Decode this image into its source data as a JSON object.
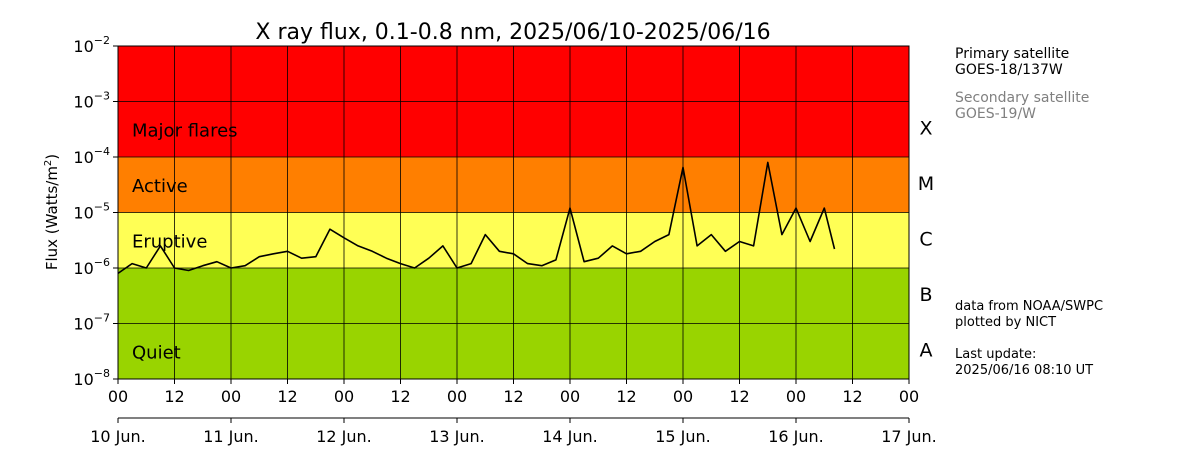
{
  "chart_data": {
    "type": "line",
    "title": "X ray flux, 0.1-0.8 nm, 2025/06/10-2025/06/16",
    "ylabel": "Flux (Watts/m²)",
    "xlabel": "",
    "y_scale": "log",
    "ylim": [
      "1e-8",
      "1e-2"
    ],
    "y_ticks": [
      {
        "value": "1e-2",
        "base": "10",
        "exp": "−2"
      },
      {
        "value": "1e-3",
        "base": "10",
        "exp": "−3"
      },
      {
        "value": "1e-4",
        "base": "10",
        "exp": "−4"
      },
      {
        "value": "1e-5",
        "base": "10",
        "exp": "−5"
      },
      {
        "value": "1e-6",
        "base": "10",
        "exp": "−6"
      },
      {
        "value": "1e-7",
        "base": "10",
        "exp": "−7"
      },
      {
        "value": "1e-8",
        "base": "10",
        "exp": "−8"
      }
    ],
    "xlim": [
      "2025-06-10T00:00",
      "2025-06-17T00:00"
    ],
    "hour_ticks": [
      "00",
      "12",
      "00",
      "12",
      "00",
      "12",
      "00",
      "12",
      "00",
      "12",
      "00",
      "12",
      "00",
      "12",
      "00"
    ],
    "day_labels": [
      "10 Jun.",
      "11 Jun.",
      "12 Jun.",
      "13 Jun.",
      "14 Jun.",
      "15 Jun.",
      "16 Jun.",
      "17 Jun."
    ],
    "grid": true,
    "bands": [
      {
        "label": "Major flares",
        "from": "1e-4",
        "to": "1e-2",
        "color": "#ff0000"
      },
      {
        "label": "Active",
        "from": "1e-5",
        "to": "1e-4",
        "color": "#ff7f00"
      },
      {
        "label": "Eruptive",
        "from": "1e-6",
        "to": "1e-5",
        "color": "#ffff55"
      },
      {
        "label": "Quiet",
        "from": "1e-8",
        "to": "1e-6",
        "color": "#99d400"
      }
    ],
    "classes": [
      {
        "label": "X",
        "at": "3e-4"
      },
      {
        "label": "M",
        "at": "3e-5"
      },
      {
        "label": "C",
        "at": "3e-6"
      },
      {
        "label": "B",
        "at": "3e-7"
      },
      {
        "label": "A",
        "at": "3e-8"
      }
    ],
    "series": [
      {
        "color": "#000000",
        "x": [
          "2025-06-10T00:00",
          "2025-06-10T03:00",
          "2025-06-10T06:00",
          "2025-06-10T09:00",
          "2025-06-10T12:00",
          "2025-06-10T15:00",
          "2025-06-10T18:00",
          "2025-06-10T21:00",
          "2025-06-11T00:00",
          "2025-06-11T03:00",
          "2025-06-11T06:00",
          "2025-06-11T09:00",
          "2025-06-11T12:00",
          "2025-06-11T15:00",
          "2025-06-11T18:00",
          "2025-06-11T21:00",
          "2025-06-12T00:00",
          "2025-06-12T03:00",
          "2025-06-12T06:00",
          "2025-06-12T09:00",
          "2025-06-12T12:00",
          "2025-06-12T15:00",
          "2025-06-12T18:00",
          "2025-06-12T21:00",
          "2025-06-13T00:00",
          "2025-06-13T03:00",
          "2025-06-13T06:00",
          "2025-06-13T09:00",
          "2025-06-13T12:00",
          "2025-06-13T15:00",
          "2025-06-13T18:00",
          "2025-06-13T21:00",
          "2025-06-14T00:00",
          "2025-06-14T03:00",
          "2025-06-14T06:00",
          "2025-06-14T09:00",
          "2025-06-14T12:00",
          "2025-06-14T15:00",
          "2025-06-14T18:00",
          "2025-06-14T21:00",
          "2025-06-15T00:00",
          "2025-06-15T03:00",
          "2025-06-15T06:00",
          "2025-06-15T09:00",
          "2025-06-15T12:00",
          "2025-06-15T15:00",
          "2025-06-15T18:00",
          "2025-06-15T21:00",
          "2025-06-16T00:00",
          "2025-06-16T03:00",
          "2025-06-16T06:00",
          "2025-06-16T08:10"
        ],
        "y": [
          8e-07,
          1.2e-06,
          1e-06,
          2.5e-06,
          1e-06,
          9e-07,
          1.1e-06,
          1.3e-06,
          1e-06,
          1.1e-06,
          1.6e-06,
          1.8e-06,
          2e-06,
          1.5e-06,
          1.6e-06,
          5e-06,
          3.5e-06,
          2.5e-06,
          2e-06,
          1.5e-06,
          1.2e-06,
          1e-06,
          1.5e-06,
          2.5e-06,
          1e-06,
          1.2e-06,
          4e-06,
          2e-06,
          1.8e-06,
          1.2e-06,
          1.1e-06,
          1.4e-06,
          1.2e-05,
          1.3e-06,
          1.5e-06,
          2.5e-06,
          1.8e-06,
          2e-06,
          3e-06,
          4e-06,
          6.5e-05,
          2.5e-06,
          4e-06,
          2e-06,
          3e-06,
          2.5e-06,
          8e-05,
          4e-06,
          1.2e-05,
          3e-06,
          1.2e-05,
          2.2e-06
        ]
      }
    ]
  },
  "sidebar": {
    "primary_label": "Primary satellite",
    "primary_sat": "GOES-18/137W",
    "secondary_label": "Secondary satellite",
    "secondary_sat": "GOES-19/W",
    "credit_1": "data from NOAA/SWPC",
    "credit_2": "plotted by NICT",
    "update_label": "Last update:",
    "update_value": "2025/06/16 08:10 UT"
  }
}
